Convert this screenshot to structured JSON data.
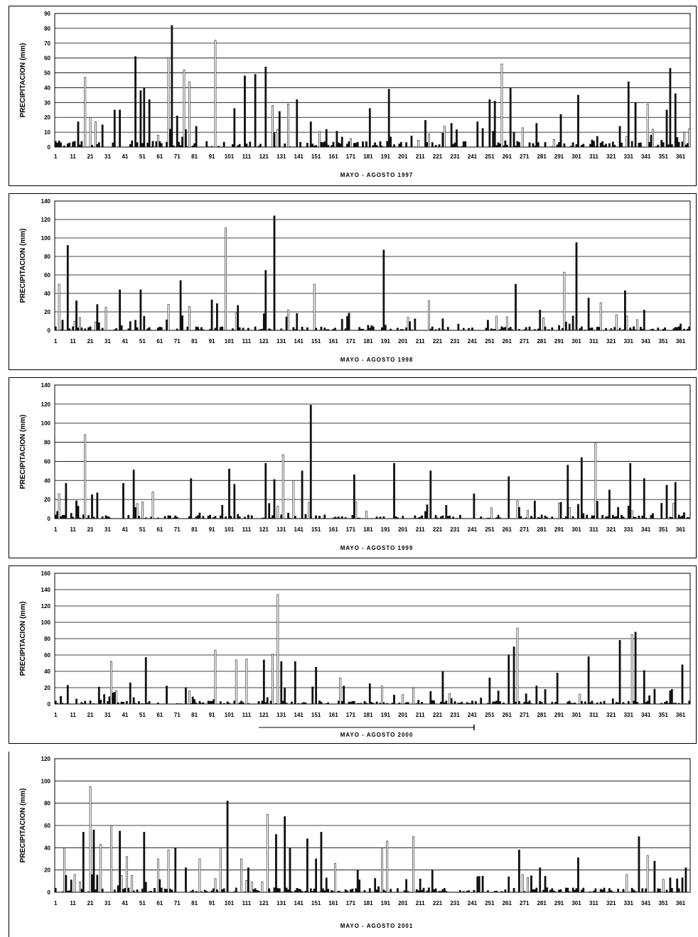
{
  "chart_data": [
    {
      "type": "bar",
      "ylabel": "PRECIPITACION (mm)",
      "xlabel": "MAYO - AGOSTO 1997",
      "ylim": [
        0,
        90
      ],
      "yticks": [
        0,
        10,
        20,
        30,
        40,
        50,
        60,
        70,
        80,
        90
      ],
      "xticks": [
        1,
        11,
        21,
        31,
        41,
        51,
        61,
        71,
        81,
        91,
        101,
        111,
        121,
        131,
        141,
        151,
        161,
        171,
        181,
        191,
        201,
        211,
        221,
        231,
        241,
        251,
        261,
        271,
        281,
        291,
        301,
        311,
        321,
        331,
        341,
        351,
        361
      ],
      "xlim": [
        1,
        366
      ],
      "grid": true,
      "peaks": [
        [
          4,
          3
        ],
        [
          14,
          17
        ],
        [
          18,
          47
        ],
        [
          21,
          20
        ],
        [
          24,
          17
        ],
        [
          28,
          15
        ],
        [
          35,
          25
        ],
        [
          38,
          25
        ],
        [
          47,
          61
        ],
        [
          50,
          38
        ],
        [
          52,
          40
        ],
        [
          55,
          32
        ],
        [
          60,
          8
        ],
        [
          66,
          60
        ],
        [
          68,
          82
        ],
        [
          71,
          21
        ],
        [
          75,
          52
        ],
        [
          78,
          44
        ],
        [
          82,
          14
        ],
        [
          93,
          72
        ],
        [
          104,
          26
        ],
        [
          110,
          48
        ],
        [
          116,
          49
        ],
        [
          122,
          54
        ],
        [
          126,
          28
        ],
        [
          130,
          24
        ],
        [
          135,
          29
        ],
        [
          140,
          32
        ],
        [
          148,
          17
        ],
        [
          182,
          26
        ],
        [
          193,
          39
        ],
        [
          214,
          18
        ],
        [
          225,
          14
        ],
        [
          229,
          16
        ],
        [
          244,
          17
        ],
        [
          251,
          32
        ],
        [
          254,
          31
        ],
        [
          258,
          56
        ],
        [
          263,
          40
        ],
        [
          270,
          13
        ],
        [
          278,
          16
        ],
        [
          292,
          22
        ],
        [
          302,
          35
        ],
        [
          311,
          4
        ],
        [
          326,
          14
        ],
        [
          331,
          44
        ],
        [
          335,
          30
        ],
        [
          342,
          29
        ],
        [
          345,
          12
        ],
        [
          353,
          25
        ],
        [
          355,
          53
        ],
        [
          358,
          36
        ],
        [
          363,
          10
        ]
      ]
    },
    {
      "type": "bar",
      "ylabel": "PRECIPITACION (mm)",
      "xlabel": "MAYO - AGOSTO 1998",
      "ylim": [
        0,
        140
      ],
      "yticks": [
        0,
        20,
        40,
        60,
        80,
        100,
        120,
        140
      ],
      "xticks": [
        1,
        11,
        21,
        31,
        41,
        51,
        61,
        71,
        81,
        91,
        101,
        111,
        121,
        131,
        141,
        151,
        161,
        171,
        181,
        191,
        201,
        211,
        221,
        231,
        241,
        251,
        261,
        271,
        281,
        291,
        301,
        311,
        321,
        331,
        341,
        351,
        361
      ],
      "xlim": [
        1,
        366
      ],
      "grid": true,
      "peaks": [
        [
          3,
          50
        ],
        [
          8,
          92
        ],
        [
          13,
          32
        ],
        [
          25,
          28
        ],
        [
          30,
          25
        ],
        [
          38,
          44
        ],
        [
          50,
          44
        ],
        [
          66,
          28
        ],
        [
          73,
          54
        ],
        [
          78,
          26
        ],
        [
          91,
          33
        ],
        [
          94,
          29
        ],
        [
          99,
          111
        ],
        [
          106,
          27
        ],
        [
          122,
          65
        ],
        [
          127,
          124
        ],
        [
          135,
          22
        ],
        [
          150,
          50
        ],
        [
          166,
          12
        ],
        [
          190,
          87
        ],
        [
          216,
          32
        ],
        [
          266,
          50
        ],
        [
          280,
          22
        ],
        [
          294,
          63
        ],
        [
          301,
          95
        ],
        [
          308,
          35
        ],
        [
          315,
          30
        ],
        [
          329,
          43
        ],
        [
          340,
          22
        ]
      ]
    },
    {
      "type": "bar",
      "ylabel": "PRECIPITACION (mm)",
      "xlabel": "MAYO - AGOSTO 1999",
      "ylim": [
        0,
        140
      ],
      "yticks": [
        0,
        20,
        40,
        60,
        80,
        100,
        120,
        140
      ],
      "xticks": [
        1,
        11,
        21,
        31,
        41,
        51,
        61,
        71,
        81,
        91,
        101,
        111,
        121,
        131,
        141,
        151,
        161,
        171,
        181,
        191,
        201,
        211,
        221,
        231,
        241,
        251,
        261,
        271,
        281,
        291,
        301,
        311,
        321,
        331,
        341,
        351,
        361
      ],
      "xlim": [
        1,
        366
      ],
      "grid": true,
      "peaks": [
        [
          3,
          26
        ],
        [
          7,
          37
        ],
        [
          14,
          13
        ],
        [
          18,
          88
        ],
        [
          22,
          25
        ],
        [
          25,
          27
        ],
        [
          40,
          37
        ],
        [
          46,
          51
        ],
        [
          57,
          28
        ],
        [
          79,
          42
        ],
        [
          97,
          14
        ],
        [
          101,
          52
        ],
        [
          104,
          36
        ],
        [
          122,
          58
        ],
        [
          127,
          41
        ],
        [
          132,
          67
        ],
        [
          138,
          40
        ],
        [
          143,
          50
        ],
        [
          148,
          119
        ],
        [
          173,
          46
        ],
        [
          196,
          58
        ],
        [
          217,
          50
        ],
        [
          242,
          26
        ],
        [
          262,
          44
        ],
        [
          296,
          56
        ],
        [
          304,
          64
        ],
        [
          312,
          79
        ],
        [
          320,
          30
        ],
        [
          332,
          58
        ],
        [
          340,
          42
        ],
        [
          353,
          35
        ],
        [
          358,
          38
        ]
      ]
    },
    {
      "type": "bar",
      "ylabel": "PRECIPITACION (mm)",
      "xlabel": "MAYO - AGOSTO 2000",
      "ylim": [
        0,
        160
      ],
      "yticks": [
        0,
        20,
        40,
        60,
        80,
        100,
        120,
        140,
        160
      ],
      "xticks": [
        1,
        11,
        21,
        31,
        41,
        51,
        61,
        71,
        81,
        91,
        101,
        111,
        121,
        131,
        141,
        151,
        161,
        171,
        181,
        191,
        201,
        211,
        221,
        231,
        241,
        251,
        261,
        271,
        281,
        291,
        301,
        311,
        321,
        331,
        341,
        351,
        361
      ],
      "xlim": [
        1,
        366
      ],
      "grid": true,
      "peaks": [
        [
          8,
          23
        ],
        [
          33,
          52
        ],
        [
          44,
          26
        ],
        [
          53,
          57
        ],
        [
          65,
          22
        ],
        [
          78,
          16
        ],
        [
          93,
          66
        ],
        [
          105,
          54
        ],
        [
          111,
          55
        ],
        [
          121,
          54
        ],
        [
          126,
          61
        ],
        [
          129,
          134
        ],
        [
          131,
          52
        ],
        [
          139,
          52
        ],
        [
          151,
          45
        ],
        [
          165,
          32
        ],
        [
          182,
          25
        ],
        [
          207,
          20
        ],
        [
          224,
          40
        ],
        [
          251,
          32
        ],
        [
          262,
          60
        ],
        [
          265,
          70
        ],
        [
          267,
          93
        ],
        [
          290,
          38
        ],
        [
          308,
          58
        ],
        [
          326,
          78
        ],
        [
          333,
          85
        ],
        [
          335,
          88
        ],
        [
          340,
          41
        ],
        [
          362,
          48
        ]
      ]
    },
    {
      "type": "bar",
      "ylabel": "PRECIPITACION (mm)",
      "xlabel": "MAYO - AGOSTO 2001",
      "ylim": [
        0,
        120
      ],
      "yticks": [
        0,
        20,
        40,
        60,
        80,
        100,
        120
      ],
      "xticks": [
        1,
        11,
        21,
        31,
        41,
        51,
        61,
        71,
        81,
        91,
        101,
        111,
        121,
        131,
        141,
        151,
        161,
        171,
        181,
        191,
        201,
        211,
        221,
        231,
        241,
        251,
        261,
        271,
        281,
        291,
        301,
        311,
        321,
        331,
        341,
        351,
        361
      ],
      "xlim": [
        1,
        366
      ],
      "grid": true,
      "peaks": [
        [
          6,
          40
        ],
        [
          12,
          16
        ],
        [
          17,
          54
        ],
        [
          21,
          95
        ],
        [
          23,
          56
        ],
        [
          27,
          43
        ],
        [
          33,
          60
        ],
        [
          38,
          55
        ],
        [
          42,
          32
        ],
        [
          52,
          54
        ],
        [
          60,
          30
        ],
        [
          66,
          38
        ],
        [
          70,
          40
        ],
        [
          76,
          22
        ],
        [
          84,
          30
        ],
        [
          96,
          40
        ],
        [
          100,
          82
        ],
        [
          108,
          30
        ],
        [
          112,
          22
        ],
        [
          123,
          70
        ],
        [
          128,
          52
        ],
        [
          133,
          68
        ],
        [
          136,
          40
        ],
        [
          146,
          48
        ],
        [
          151,
          30
        ],
        [
          154,
          54
        ],
        [
          162,
          26
        ],
        [
          175,
          20
        ],
        [
          189,
          40
        ],
        [
          192,
          46
        ],
        [
          207,
          50
        ],
        [
          218,
          20
        ],
        [
          244,
          14
        ],
        [
          268,
          38
        ],
        [
          280,
          22
        ],
        [
          302,
          31
        ],
        [
          330,
          16
        ],
        [
          337,
          50
        ],
        [
          342,
          33
        ],
        [
          346,
          28
        ],
        [
          355,
          13
        ],
        [
          364,
          22
        ]
      ]
    }
  ]
}
